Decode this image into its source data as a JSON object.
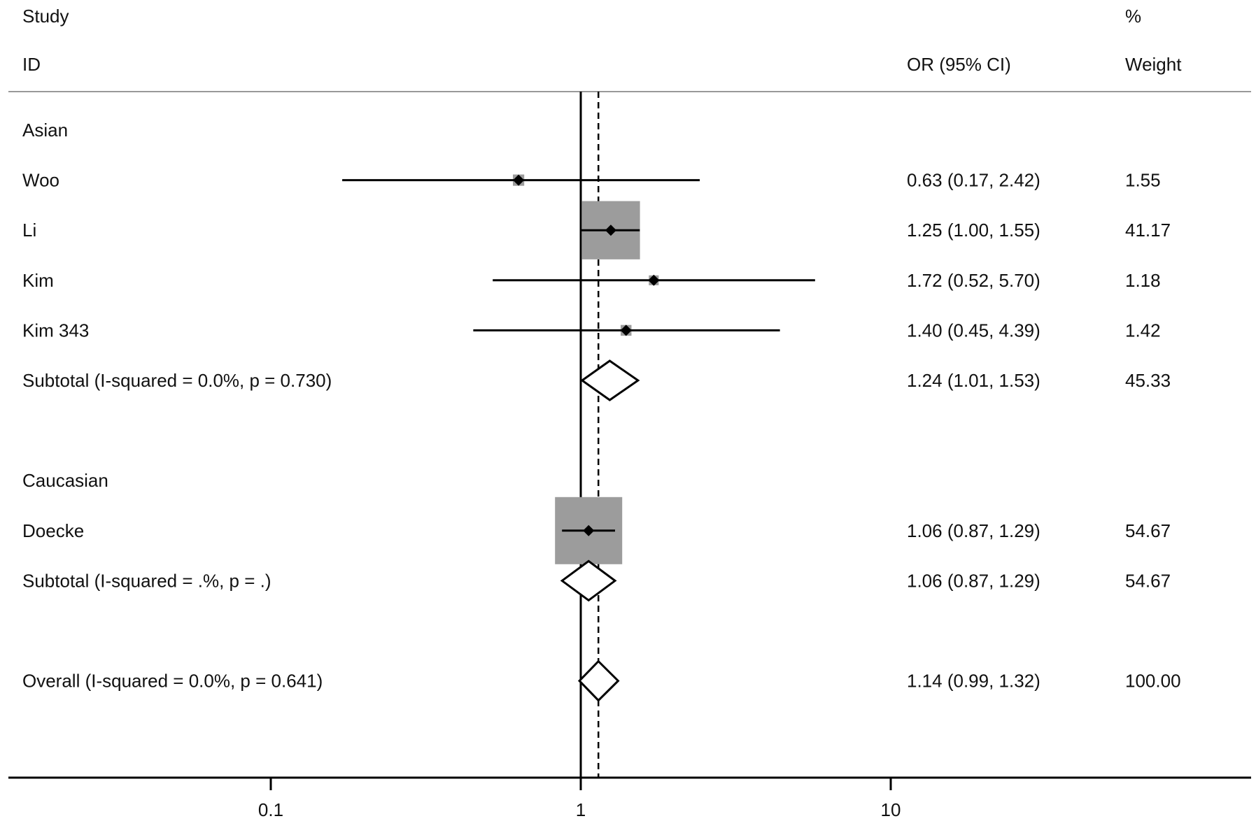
{
  "header": {
    "study_line1": "Study",
    "study_line2": "ID",
    "or_label": "OR (95% CI)",
    "weight_line1": "%",
    "weight_line2": "Weight"
  },
  "chart_data": {
    "type": "forest",
    "xscale": "log",
    "xlim": [
      0.03,
      120
    ],
    "xticks": [
      0.1,
      1,
      10
    ],
    "xtick_labels": [
      "0.1",
      "1",
      "10"
    ],
    "null_line": 1,
    "overall_line": 1.14,
    "rows": [
      {
        "kind": "group",
        "label": "Asian"
      },
      {
        "kind": "study",
        "label": "Woo",
        "or": 0.63,
        "lo": 0.17,
        "hi": 2.42,
        "weight": 1.55,
        "ci_text": "0.63 (0.17, 2.42)",
        "weight_text": "1.55"
      },
      {
        "kind": "study",
        "label": "Li",
        "or": 1.25,
        "lo": 1.0,
        "hi": 1.55,
        "weight": 41.17,
        "ci_text": "1.25 (1.00, 1.55)",
        "weight_text": "41.17"
      },
      {
        "kind": "study",
        "label": "Kim",
        "or": 1.72,
        "lo": 0.52,
        "hi": 5.7,
        "weight": 1.18,
        "ci_text": "1.72 (0.52, 5.70)",
        "weight_text": "1.18"
      },
      {
        "kind": "study",
        "label": "Kim 343",
        "or": 1.4,
        "lo": 0.45,
        "hi": 4.39,
        "weight": 1.42,
        "ci_text": "1.40 (0.45, 4.39)",
        "weight_text": "1.42"
      },
      {
        "kind": "subtotal",
        "label": "Subtotal  (I-squared = 0.0%, p = 0.730)",
        "or": 1.24,
        "lo": 1.01,
        "hi": 1.53,
        "weight": 45.33,
        "ci_text": "1.24 (1.01, 1.53)",
        "weight_text": "45.33"
      },
      {
        "kind": "spacer"
      },
      {
        "kind": "group",
        "label": "Caucasian"
      },
      {
        "kind": "study",
        "label": "Doecke",
        "or": 1.06,
        "lo": 0.87,
        "hi": 1.29,
        "weight": 54.67,
        "ci_text": "1.06 (0.87, 1.29)",
        "weight_text": "54.67"
      },
      {
        "kind": "subtotal",
        "label": "Subtotal  (I-squared = .%, p = .)",
        "or": 1.06,
        "lo": 0.87,
        "hi": 1.29,
        "weight": 54.67,
        "ci_text": "1.06 (0.87, 1.29)",
        "weight_text": "54.67"
      },
      {
        "kind": "spacer"
      },
      {
        "kind": "overall",
        "label": "Overall  (I-squared = 0.0%, p = 0.641)",
        "or": 1.14,
        "lo": 0.99,
        "hi": 1.32,
        "weight": 100.0,
        "ci_text": "1.14 (0.99, 1.32)",
        "weight_text": "100.00"
      }
    ]
  }
}
